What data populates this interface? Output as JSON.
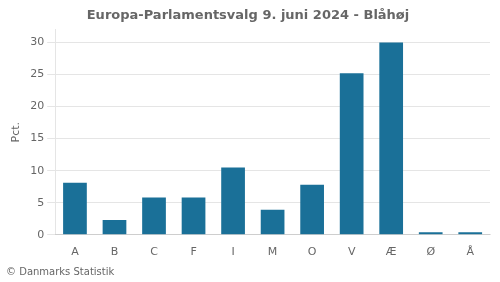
{
  "chart_data": {
    "type": "bar",
    "title": "Europa-Parlamentsvalg 9. juni 2024 - Blåhøj",
    "footer": "© Danmarks Statistik",
    "ylabel": "Pct.",
    "categories": [
      "A",
      "B",
      "C",
      "F",
      "I",
      "M",
      "O",
      "V",
      "Æ",
      "Ø",
      "Å"
    ],
    "values": [
      8.1,
      2.3,
      5.8,
      5.8,
      10.5,
      3.9,
      7.8,
      25.2,
      30.0,
      0.4,
      0.4
    ],
    "color": "#1a7098",
    "ylim": [
      0,
      32
    ],
    "yticks": [
      0,
      5,
      10,
      15,
      20,
      25,
      30
    ],
    "grid": true
  }
}
